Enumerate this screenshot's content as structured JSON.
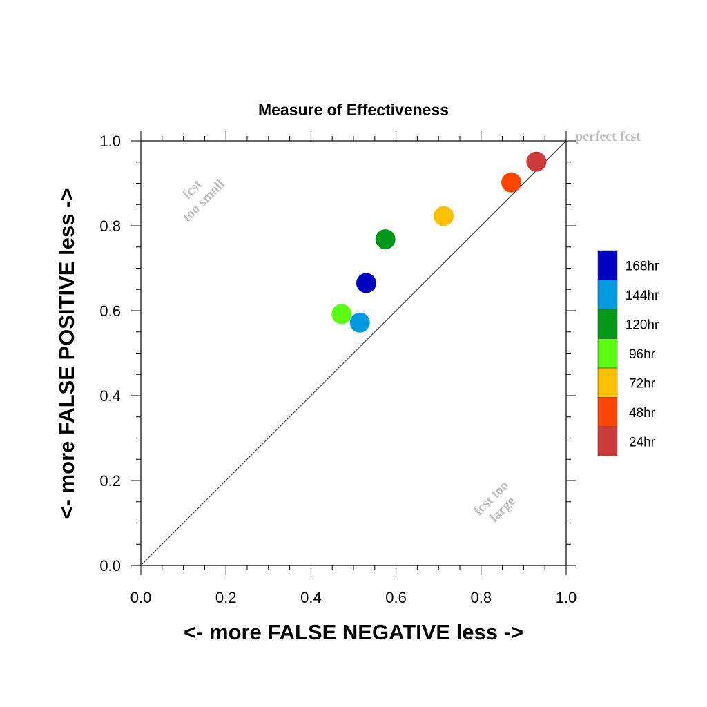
{
  "chart_data": {
    "type": "scatter",
    "title": "Measure of Effectiveness",
    "xlabel": "<- more   FALSE NEGATIVE   less ->",
    "ylabel": "<- more   FALSE POSITIVE   less ->",
    "xlim": [
      0.0,
      1.0
    ],
    "ylim": [
      0.0,
      1.0
    ],
    "xticks": [
      "0.0",
      "0.2",
      "0.4",
      "0.6",
      "0.8",
      "1.0"
    ],
    "yticks": [
      "0.0",
      "0.2",
      "0.4",
      "0.6",
      "0.8",
      "1.0"
    ],
    "grid": false,
    "reference_line": "diagonal y = x",
    "legend_position": "right",
    "annotations": {
      "perfect": "perfect fcst",
      "small_line1": "fcst",
      "small_line2": "too small",
      "large_line1": "fcst too",
      "large_line2": "large"
    },
    "series": [
      {
        "name": "168hr",
        "color": "#0000c0",
        "x": 0.53,
        "y": 0.665
      },
      {
        "name": "144hr",
        "color": "#009ae0",
        "x": 0.515,
        "y": 0.572
      },
      {
        "name": "120hr",
        "color": "#00991a",
        "x": 0.575,
        "y": 0.768
      },
      {
        "name": "96hr",
        "color": "#5aff12",
        "x": 0.472,
        "y": 0.592
      },
      {
        "name": "72hr",
        "color": "#ffc000",
        "x": 0.712,
        "y": 0.823
      },
      {
        "name": "48hr",
        "color": "#ff4500",
        "x": 0.871,
        "y": 0.902
      },
      {
        "name": "24hr",
        "color": "#cd3a3a",
        "x": 0.93,
        "y": 0.951
      }
    ]
  }
}
